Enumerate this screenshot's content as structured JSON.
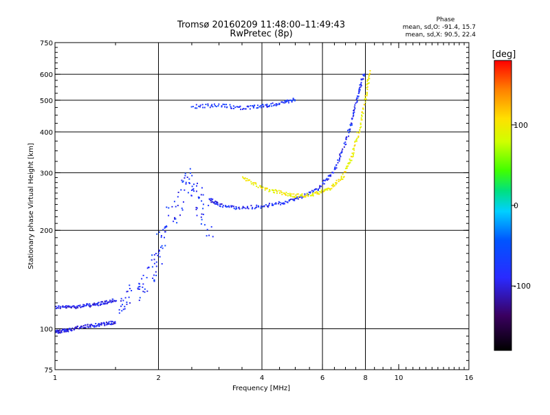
{
  "chart_data": {
    "type": "scatter",
    "title": "Tromsø 20160209 11:48:00–11:49:43",
    "subtitle": "RwPretec (8p)",
    "xlabel": "Frequency [MHz]",
    "ylabel": "Stationary phase Virtual Height [km]",
    "x_scale": "log",
    "y_scale": "log",
    "xlim": [
      1,
      16
    ],
    "ylim": [
      75,
      750
    ],
    "x_ticks": [
      1,
      2,
      4,
      6,
      8,
      10,
      16
    ],
    "y_ticks": [
      75,
      100,
      200,
      300,
      400,
      500,
      600,
      750
    ],
    "grid_x": [
      2,
      4,
      6,
      8
    ],
    "grid_y": [
      100,
      200,
      300,
      400,
      500,
      600
    ],
    "stats": {
      "heading": "Phase",
      "line_o": "mean, sd,O: -91.4, 15.7",
      "line_x": "mean, sd,X:  90.5, 22.4"
    },
    "colorbar": {
      "label": "[deg]",
      "range": [
        -180,
        180
      ],
      "ticks": [
        -100,
        0,
        100
      ],
      "tick_labels": [
        "-100",
        "0",
        "100"
      ]
    },
    "series": [
      {
        "name": "",
        "trace": "low-spread-F",
        "phase_deg": -105,
        "points": [
          [
            1.0,
            117
          ],
          [
            1.1,
            117
          ],
          [
            1.2,
            118
          ],
          [
            1.3,
            119
          ],
          [
            1.4,
            121
          ],
          [
            1.5,
            123
          ]
        ]
      },
      {
        "name": "",
        "trace": "e-layer",
        "phase_deg": -105,
        "points": [
          [
            1.0,
            98
          ],
          [
            1.05,
            99
          ],
          [
            1.1,
            100
          ],
          [
            1.2,
            102
          ],
          [
            1.3,
            103
          ],
          [
            1.4,
            104
          ],
          [
            1.5,
            105
          ]
        ]
      },
      {
        "name": "",
        "trace": "o-trace",
        "phase_deg": -95,
        "points": [
          [
            2.8,
            250
          ],
          [
            3.0,
            240
          ],
          [
            3.4,
            235
          ],
          [
            4.0,
            238
          ],
          [
            4.6,
            244
          ],
          [
            5.2,
            255
          ],
          [
            5.8,
            270
          ],
          [
            6.4,
            300
          ],
          [
            6.9,
            360
          ],
          [
            7.3,
            440
          ],
          [
            7.6,
            530
          ],
          [
            7.9,
            610
          ]
        ]
      },
      {
        "name": "",
        "trace": "x-trace",
        "phase_deg": 100,
        "points": [
          [
            3.5,
            292
          ],
          [
            4.0,
            270
          ],
          [
            4.5,
            262
          ],
          [
            5.0,
            256
          ],
          [
            5.6,
            258
          ],
          [
            6.2,
            268
          ],
          [
            6.8,
            290
          ],
          [
            7.3,
            340
          ],
          [
            7.7,
            420
          ],
          [
            8.0,
            520
          ],
          [
            8.2,
            620
          ]
        ]
      },
      {
        "name": "",
        "trace": "upper-trace",
        "phase_deg": -90,
        "points": [
          [
            2.5,
            480
          ],
          [
            3.0,
            485
          ],
          [
            3.5,
            475
          ],
          [
            4.0,
            482
          ],
          [
            4.5,
            492
          ],
          [
            5.0,
            505
          ]
        ]
      },
      {
        "name": "",
        "trace": "spread-F",
        "phase_deg": -90,
        "points": [
          [
            1.5,
            120
          ],
          [
            1.7,
            130
          ],
          [
            1.9,
            150
          ],
          [
            2.0,
            180
          ],
          [
            2.2,
            230
          ],
          [
            2.4,
            300
          ],
          [
            2.6,
            250
          ],
          [
            2.8,
            200
          ]
        ]
      }
    ]
  }
}
